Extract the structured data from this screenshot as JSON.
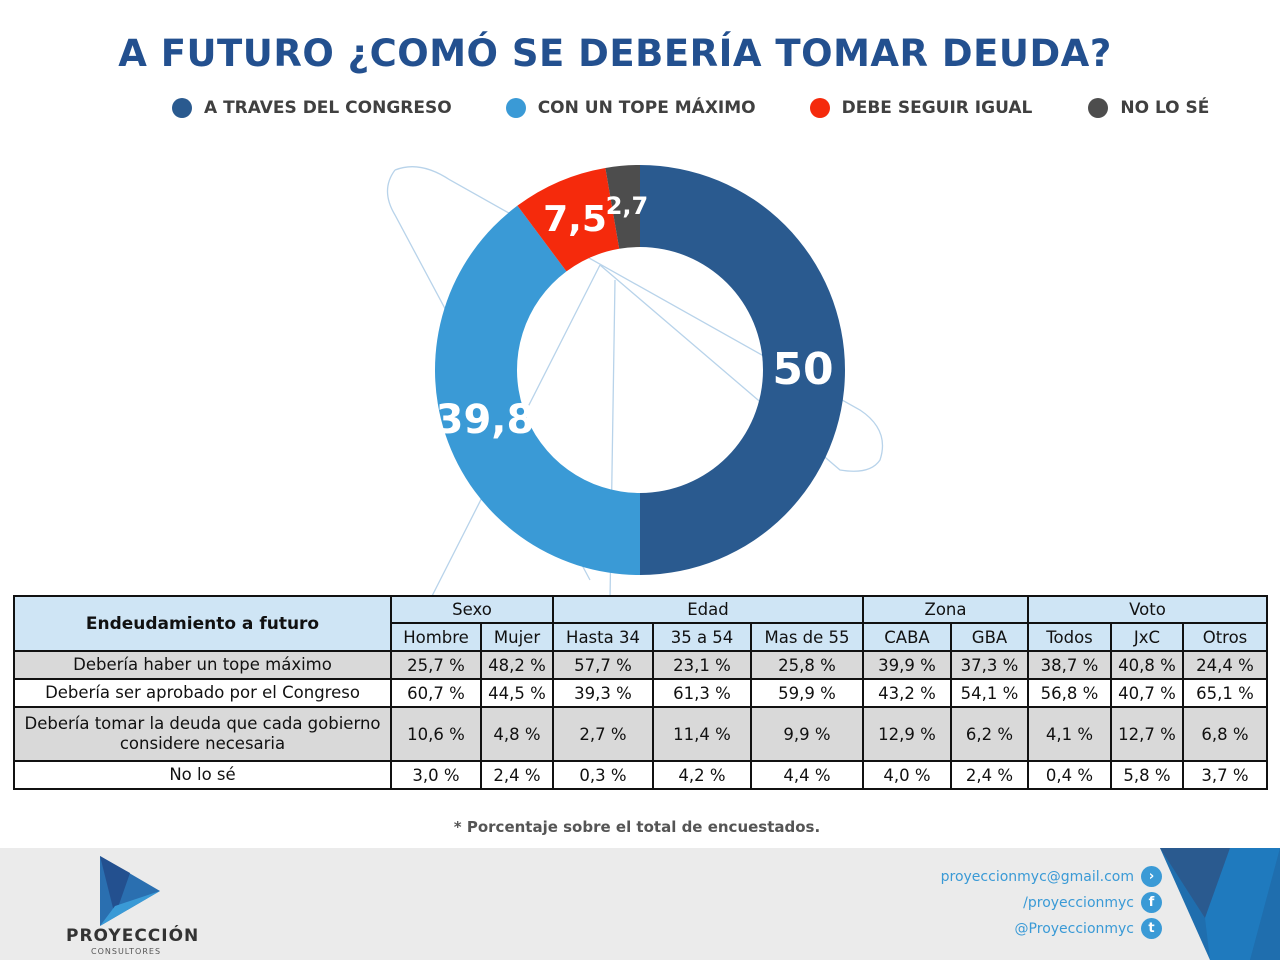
{
  "chart_data": {
    "type": "pie",
    "title": "A FUTURO ¿COMÓ SE DEBERÍA TOMAR DEUDA?",
    "legend_position": "top",
    "series": [
      {
        "name": "A TRAVES DEL CONGRESO",
        "value": 50,
        "label": "50",
        "color": "#2a5a8f"
      },
      {
        "name": "CON UN TOPE MÁXIMO",
        "value": 39.8,
        "label": "39,8",
        "color": "#3a9ad6"
      },
      {
        "name": "DEBE SEGUIR IGUAL",
        "value": 7.5,
        "label": "7,5",
        "color": "#f52a0c"
      },
      {
        "name": "NO LO SÉ",
        "value": 2.7,
        "label": "2,7",
        "color": "#4d4d4d"
      }
    ]
  },
  "table": {
    "corner": "Endeudamiento a futuro",
    "groups": [
      {
        "label": "Sexo",
        "span": 2
      },
      {
        "label": "Edad",
        "span": 3
      },
      {
        "label": "Zona",
        "span": 2
      },
      {
        "label": "Voto",
        "span": 3
      }
    ],
    "columns": [
      "Hombre",
      "Mujer",
      "Hasta 34",
      "35 a 54",
      "Mas de 55",
      "CABA",
      "GBA",
      "Todos",
      "JxC",
      "Otros"
    ],
    "rows": [
      {
        "label": "Debería haber un tope máximo",
        "values": [
          "25,7 %",
          "48,2 %",
          "57,7 %",
          "23,1 %",
          "25,8 %",
          "39,9 %",
          "37,3 %",
          "38,7 %",
          "40,8 %",
          "24,4 %"
        ]
      },
      {
        "label": "Debería ser aprobado por el Congreso",
        "values": [
          "60,7 %",
          "44,5 %",
          "39,3 %",
          "61,3 %",
          "59,9 %",
          "43,2 %",
          "54,1 %",
          "56,8 %",
          "40,7 %",
          "65,1 %"
        ]
      },
      {
        "label": "Debería tomar la deuda que cada gobierno considere necesaria",
        "values": [
          "10,6 %",
          "4,8 %",
          "2,7 %",
          "11,4 %",
          "9,9 %",
          "12,9 %",
          "6,2 %",
          "4,1 %",
          "12,7 %",
          "6,8 %"
        ]
      },
      {
        "label": "No lo sé",
        "values": [
          "3,0 %",
          "2,4 %",
          "0,3 %",
          "4,2 %",
          "4,4 %",
          "4,0 %",
          "2,4 %",
          "0,4 %",
          "5,8 %",
          "3,7 %"
        ]
      }
    ]
  },
  "note": "* Porcentaje sobre el total de encuestados.",
  "footer": {
    "brand": "PROYECCIÓN",
    "brand_sub": "CONSULTORES",
    "email": "proyeccionmyc@gmail.com",
    "facebook": "/proyeccionmyc",
    "twitter": "@Proyeccionmyc"
  }
}
